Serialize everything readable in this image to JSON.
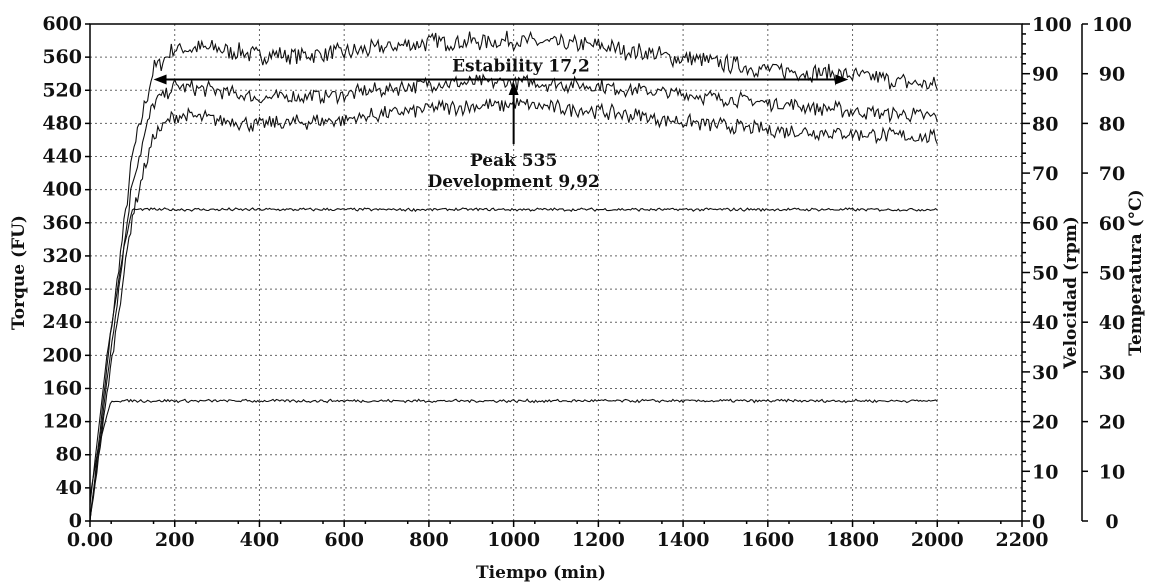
{
  "chart_data": {
    "type": "line",
    "title": "",
    "xlabel": "Tiempo (min)",
    "ylabel_left": "Torque (FU)",
    "ylabel_right_1": "Velocidad (rpm)",
    "ylabel_right_2": "Temperatura (°C)",
    "xlim": [
      0,
      2200
    ],
    "ylim_left": [
      0,
      600
    ],
    "ylim_right_1": [
      0,
      100
    ],
    "ylim_right_2": [
      0,
      100
    ],
    "grid": true,
    "x_ticks": [
      "0.00",
      "200",
      "400",
      "600",
      "800",
      "1000",
      "1200",
      "1400",
      "1600",
      "1800",
      "2000",
      "2200"
    ],
    "y_left_ticks": [
      "0",
      "40",
      "80",
      "120",
      "160",
      "200",
      "240",
      "280",
      "320",
      "360",
      "400",
      "440",
      "480",
      "520",
      "560",
      "600"
    ],
    "y_right_1_ticks": [
      "0",
      "10",
      "20",
      "30",
      "40",
      "50",
      "60",
      "70",
      "80",
      "90",
      "100"
    ],
    "y_right_2_ticks": [
      "0",
      "10",
      "20",
      "30",
      "40",
      "50",
      "60",
      "70",
      "80",
      "90",
      "100"
    ],
    "series": [
      {
        "x": [
          0,
          50,
          100,
          150,
          200,
          300,
          400,
          600,
          800,
          1000,
          1200,
          1400,
          1600,
          1800,
          2000
        ],
        "values": [
          0,
          230,
          440,
          545,
          570,
          570,
          562,
          565,
          578,
          580,
          573,
          558,
          545,
          538,
          525
        ],
        "noise": 12
      },
      {
        "x": [
          0,
          50,
          100,
          150,
          200,
          300,
          400,
          600,
          800,
          1000,
          1200,
          1400,
          1600,
          1800,
          2000
        ],
        "values": [
          0,
          210,
          410,
          505,
          525,
          520,
          510,
          515,
          528,
          530,
          525,
          515,
          505,
          495,
          488
        ],
        "noise": 10
      },
      {
        "x": [
          0,
          50,
          100,
          150,
          200,
          300,
          400,
          600,
          800,
          1000,
          1200,
          1400,
          1600,
          1800,
          2000
        ],
        "values": [
          0,
          190,
          370,
          465,
          490,
          485,
          478,
          485,
          498,
          503,
          495,
          482,
          472,
          468,
          462
        ],
        "noise": 10
      },
      {
        "x": [
          0,
          40,
          80,
          100,
          2000
        ],
        "values": [
          20,
          200,
          330,
          376,
          376
        ],
        "noise": 2
      },
      {
        "x": [
          0,
          20,
          50,
          2000
        ],
        "values": [
          30,
          90,
          145,
          145
        ],
        "noise": 2
      }
    ],
    "annotations": {
      "stability_label": "Estability 17,2",
      "stability_range": [
        150,
        1790
      ],
      "stability_y": 533,
      "peak_label": "Peak 535",
      "development_label": "Development 9,92",
      "peak_x": 1000,
      "peak_y": 530,
      "peak_arrow_base_y": 455
    }
  }
}
